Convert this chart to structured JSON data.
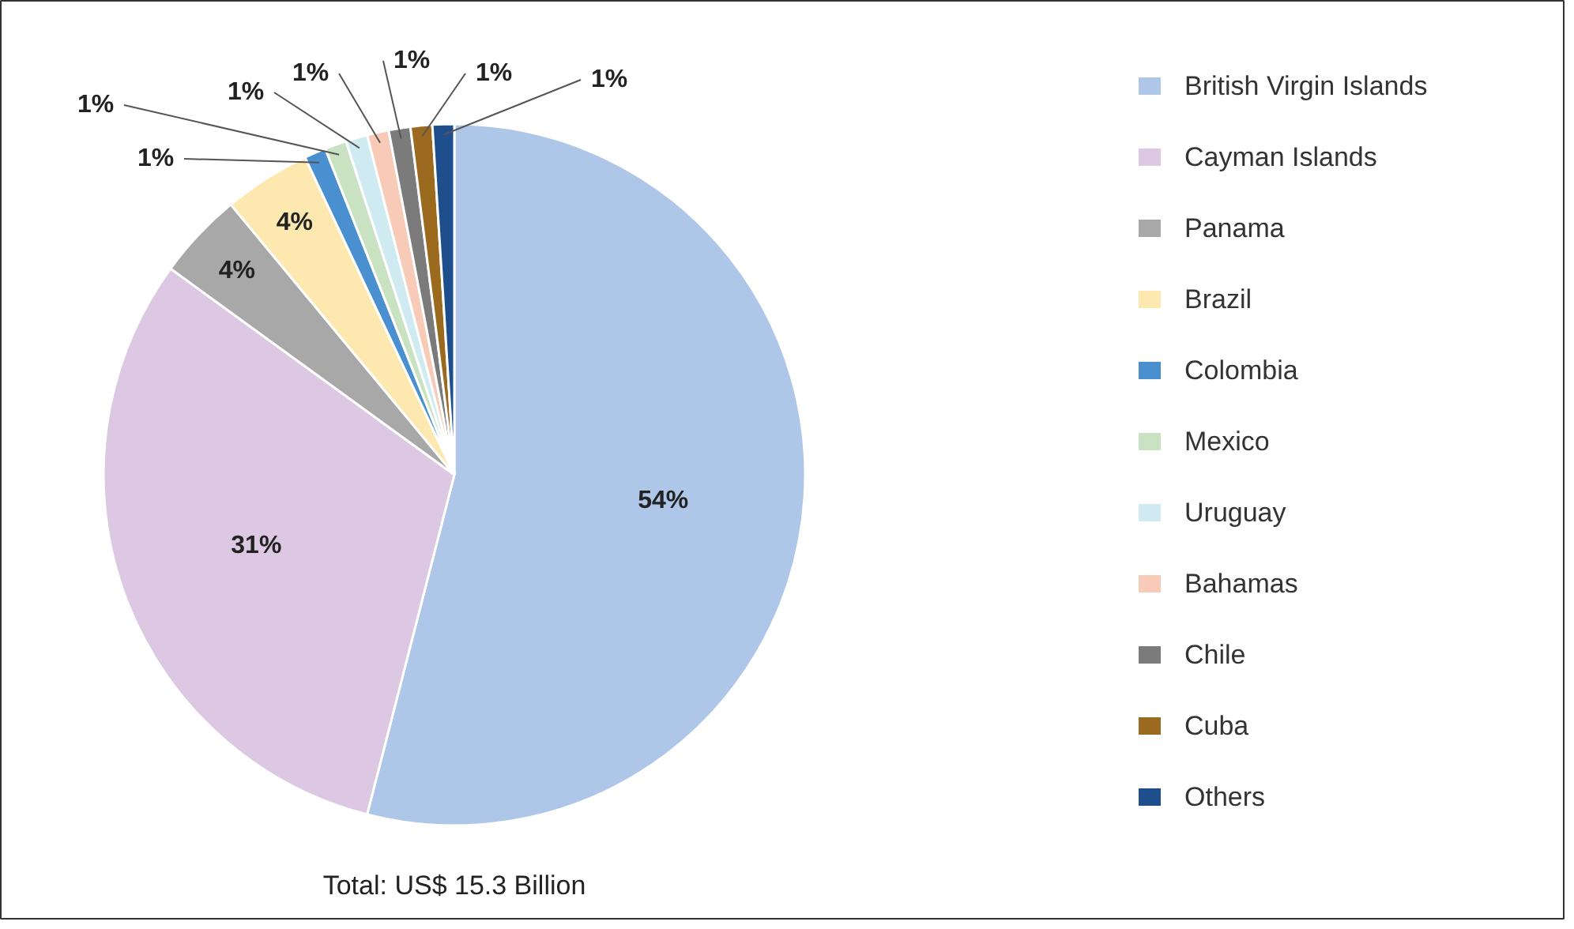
{
  "chart_data": {
    "type": "pie",
    "categories": [
      "British Virgin Islands",
      "Cayman Islands",
      "Panama",
      "Brazil",
      "Colombia",
      "Mexico",
      "Uruguay",
      "Bahamas",
      "Chile",
      "Cuba",
      "Others"
    ],
    "values": [
      54,
      31,
      4,
      4,
      1,
      1,
      1,
      1,
      1,
      1,
      1
    ],
    "colors": [
      "#aec6e8",
      "#dcc8e2",
      "#a8a8a8",
      "#fde9b0",
      "#4a90d0",
      "#c9e3c2",
      "#d0eaf2",
      "#f8cbb8",
      "#7b7b7b",
      "#9c6a1e",
      "#1f4e8c"
    ],
    "value_labels": [
      "54%",
      "31%",
      "4%",
      "4%",
      "1%",
      "1%",
      "1%",
      "1%",
      "1%",
      "1%",
      "1%"
    ],
    "legend": "right",
    "annotations": [
      "Total: US$ 15.3 Billion"
    ]
  }
}
